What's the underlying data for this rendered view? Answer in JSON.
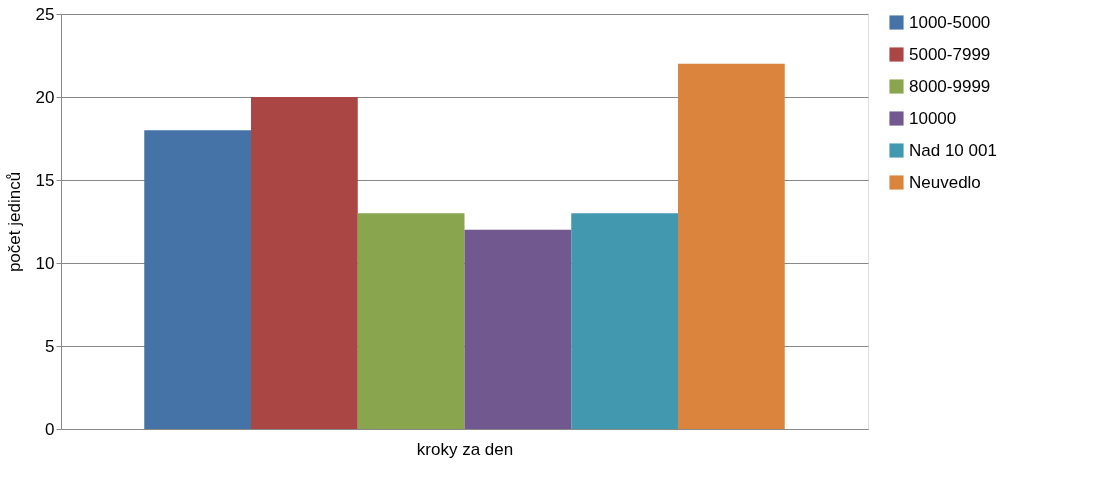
{
  "chart_data": {
    "type": "bar",
    "xlabel": "kroky za den",
    "ylabel": "počet jedinců",
    "categories": [
      null
    ],
    "series": [
      {
        "name": "1000-5000",
        "color": "#4572a7",
        "values": [
          18
        ]
      },
      {
        "name": "5000-7999",
        "color": "#aa4643",
        "values": [
          20
        ]
      },
      {
        "name": "8000-9999",
        "color": "#89a54e",
        "values": [
          13
        ]
      },
      {
        "name": "10000",
        "color": "#71588f",
        "values": [
          12
        ]
      },
      {
        "name": "Nad 10 001",
        "color": "#4198af",
        "values": [
          13
        ]
      },
      {
        "name": "Neuvedlo",
        "color": "#db843d",
        "values": [
          22
        ]
      }
    ],
    "ylim": [
      0,
      25
    ],
    "yticks": [
      0,
      5,
      10,
      15,
      20,
      25
    ],
    "grid": "y",
    "legend": "right",
    "tick_labels": "y"
  }
}
